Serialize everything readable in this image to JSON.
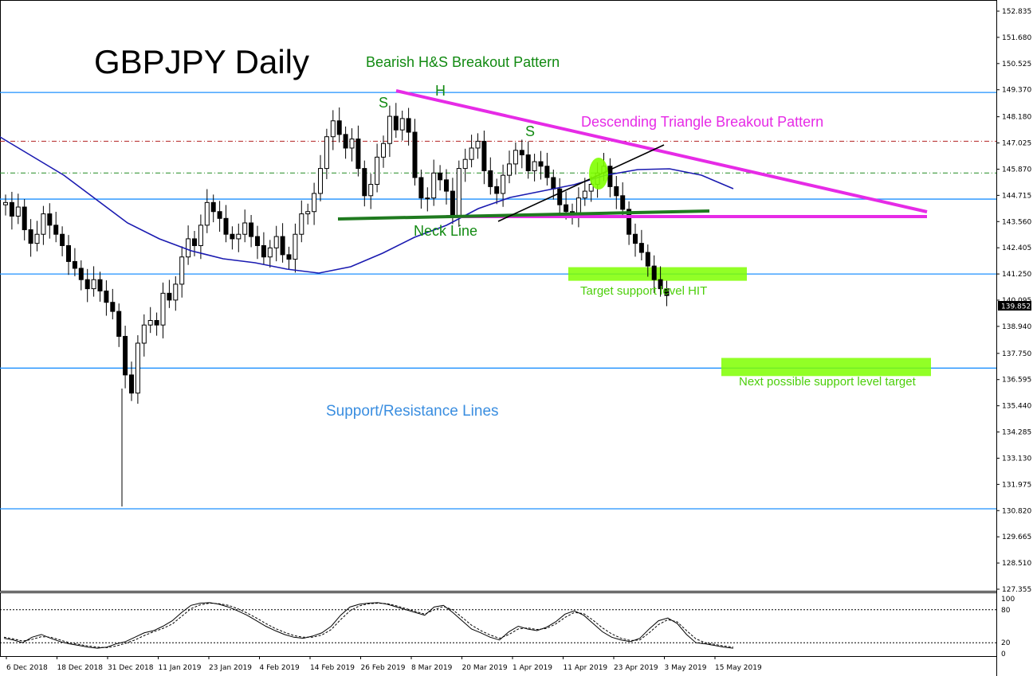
{
  "chart_data": {
    "type": "candlestick",
    "title": "GBPJPY Daily",
    "subtitle": "Bearish H&S Breakout Pattern",
    "y_axis": {
      "range": [
        127.335,
        153.4
      ],
      "ticks": [
        "152.835",
        "151.680",
        "150.525",
        "149.370",
        "148.180",
        "147.025",
        "145.870",
        "144.715",
        "143.560",
        "142.405",
        "141.250",
        "140.095",
        "138.940",
        "137.750",
        "136.595",
        "135.440",
        "134.285",
        "133.130",
        "131.975",
        "130.820",
        "129.665",
        "128.510",
        "127.355"
      ]
    },
    "x_axis": {
      "labels": [
        "6 Dec 2018",
        "18 Dec 2018",
        "31 Dec 2018",
        "11 Jan 2019",
        "23 Jan 2019",
        "4 Feb 2019",
        "14 Feb 2019",
        "26 Feb 2019",
        "8 Mar 2019",
        "20 Mar 2019",
        "1 Apr 2019",
        "11 Apr 2019",
        "23 Apr 2019",
        "3 May 2019",
        "15 May 2019"
      ]
    },
    "current_price": "139.852",
    "moving_average": {
      "color": "#1a1ab0"
    },
    "support_resistance_levels": [
      149.25,
      144.55,
      141.25,
      137.1,
      130.9
    ],
    "dashdot_levels": [
      {
        "value": 147.1,
        "color": "#b22222"
      },
      {
        "value": 145.7,
        "color": "#228b22"
      }
    ],
    "annotations": {
      "left_shoulder": "S",
      "head": "H",
      "right_shoulder": "S",
      "neck_line": "Neck Line",
      "triangle": "Descending Triangle Breakout Pattern",
      "support_resistance": "Support/Resistance Lines",
      "target_hit": "Target support level HIT",
      "next_target": "Next possible support level target"
    },
    "oscillator": {
      "name": "Stochastic",
      "ticks": [
        "100",
        "80",
        "20",
        "0"
      ],
      "levels": [
        80,
        20
      ],
      "values_k": [
        28,
        25,
        20,
        30,
        35,
        28,
        22,
        18,
        15,
        12,
        10,
        12,
        18,
        22,
        30,
        38,
        42,
        50,
        60,
        75,
        88,
        92,
        93,
        90,
        85,
        78,
        70,
        60,
        50,
        42,
        35,
        30,
        28,
        32,
        38,
        50,
        70,
        85,
        90,
        92,
        93,
        90,
        85,
        80,
        75,
        70,
        85,
        88,
        75,
        60,
        45,
        38,
        30,
        25,
        40,
        50,
        45,
        42,
        48,
        58,
        72,
        78,
        70,
        55,
        40,
        30,
        25,
        22,
        28,
        45,
        60,
        65,
        55,
        35,
        20,
        18,
        15,
        12,
        10
      ],
      "values_d": [
        30,
        27,
        23,
        26,
        31,
        30,
        25,
        20,
        17,
        14,
        12,
        11,
        14,
        19,
        25,
        33,
        40,
        46,
        54,
        68,
        82,
        89,
        92,
        91,
        88,
        82,
        74,
        65,
        55,
        46,
        39,
        33,
        30,
        30,
        34,
        44,
        62,
        78,
        87,
        91,
        92,
        91,
        87,
        82,
        77,
        72,
        80,
        86,
        80,
        66,
        52,
        42,
        34,
        28,
        35,
        45,
        47,
        44,
        46,
        54,
        66,
        75,
        73,
        61,
        47,
        36,
        28,
        24,
        25,
        38,
        53,
        62,
        58,
        42,
        27,
        20,
        17,
        14,
        12
      ],
      "colors": {
        "k": "#000000",
        "d": "#000000"
      }
    },
    "colors": {
      "sr_line": "#1e90ff",
      "ma_line": "#1a1ab0",
      "triangle": "#e62be6",
      "neckline": "#1f7a1f",
      "trend_line": "#000000",
      "target_box": "#7fff00",
      "target_text": "#4ccf0a",
      "green_text": "#128a12",
      "magenta_text": "#e62be6",
      "blue_text": "#3a8ee0"
    }
  }
}
